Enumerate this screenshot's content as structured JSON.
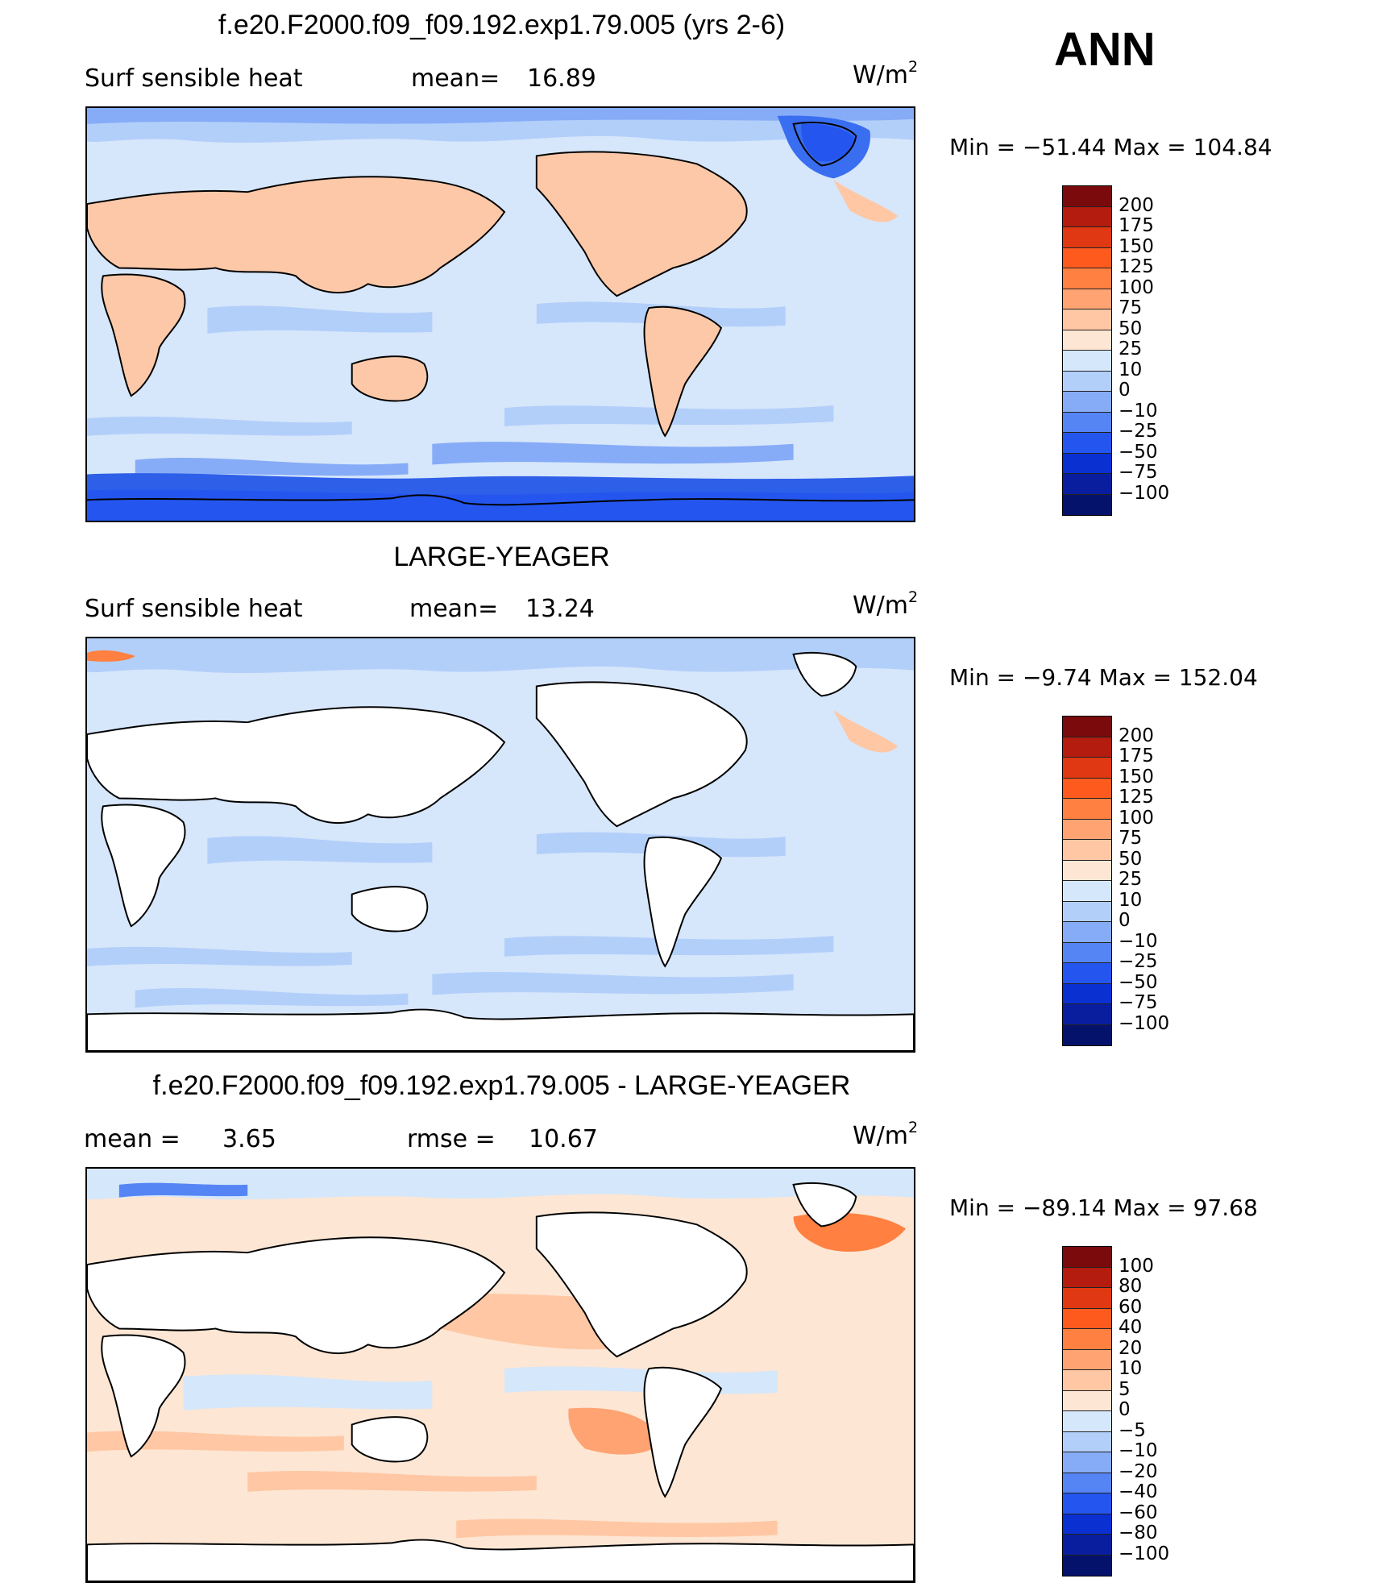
{
  "season": "ANN",
  "panels": [
    {
      "title": "f.e20.F2000.f09_f09.192.exp1.79.005 (yrs 2-6)",
      "left_label": "Surf  sensible  heat",
      "stat_label": "mean=",
      "stat_value": "16.89",
      "units": "W/m",
      "units_sup": "2",
      "min_max": "Min  =  −51.44  Max  =  104.84",
      "colorbar_labels": [
        "200",
        "175",
        "150",
        "125",
        "100",
        "75",
        "50",
        "25",
        "10",
        "0",
        "−10",
        "−25",
        "−50",
        "−75",
        "−100"
      ]
    },
    {
      "title": "LARGE-YEAGER",
      "left_label": "Surf  sensible  heat",
      "stat_label": "mean=",
      "stat_value": "13.24",
      "units": "W/m",
      "units_sup": "2",
      "min_max": "Min  =    −9.74  Max  =  152.04",
      "colorbar_labels": [
        "200",
        "175",
        "150",
        "125",
        "100",
        "75",
        "50",
        "25",
        "10",
        "0",
        "−10",
        "−25",
        "−50",
        "−75",
        "−100"
      ]
    },
    {
      "title": "f.e20.F2000.f09_f09.192.exp1.79.005 - LARGE-YEAGER",
      "left_label": "mean  =",
      "left_value": "3.65",
      "stat_label": "rmse  =",
      "stat_value": "10.67",
      "units": "W/m",
      "units_sup": "2",
      "min_max": "Min  =  −89.14  Max  =    97.68",
      "colorbar_labels": [
        "100",
        "80",
        "60",
        "40",
        "20",
        "10",
        "5",
        "0",
        "−5",
        "−10",
        "−20",
        "−40",
        "−60",
        "−80",
        "−100"
      ]
    }
  ],
  "colors": {
    "colorbar": [
      "#7a0a0c",
      "#b31c0e",
      "#e03812",
      "#ff5a1e",
      "#ff8040",
      "#ffa373",
      "#ffc7a3",
      "#fde6d4",
      "#d5e7fa",
      "#b2cffa",
      "#86acf7",
      "#5585f5",
      "#2456ef",
      "#0a30d2",
      "#081e9f",
      "#05126c"
    ],
    "ocean_field_panel1": "#d6e6fb",
    "ocean_field_panel2": "#d6e6fb",
    "ocean_field_panel3": "#fde6d4",
    "land_warm": "#fcc8a8",
    "antarctic_cold": "#2e5fe8"
  },
  "chart_data": [
    {
      "type": "heatmap",
      "title": "f.e20.F2000.f09_f09.192.exp1.79.005 (yrs 2-6)",
      "variable": "Surf  sensible  heat",
      "units": "W/m2",
      "mean": 16.89,
      "min": -51.44,
      "max": 104.84,
      "contour_levels": [
        -100,
        -75,
        -50,
        -25,
        -10,
        0,
        10,
        25,
        50,
        75,
        100,
        125,
        150,
        175,
        200
      ]
    },
    {
      "type": "heatmap",
      "title": "LARGE-YEAGER",
      "variable": "Surf  sensible  heat",
      "units": "W/m2",
      "mean": 13.24,
      "min": -9.74,
      "max": 152.04,
      "contour_levels": [
        -100,
        -75,
        -50,
        -25,
        -10,
        0,
        10,
        25,
        50,
        75,
        100,
        125,
        150,
        175,
        200
      ]
    },
    {
      "type": "heatmap",
      "title": "f.e20.F2000.f09_f09.192.exp1.79.005 - LARGE-YEAGER",
      "units": "W/m2",
      "mean": 3.65,
      "rmse": 10.67,
      "min": -89.14,
      "max": 97.68,
      "contour_levels": [
        -100,
        -80,
        -60,
        -40,
        -20,
        -10,
        -5,
        0,
        5,
        10,
        20,
        40,
        60,
        80,
        100
      ]
    }
  ]
}
